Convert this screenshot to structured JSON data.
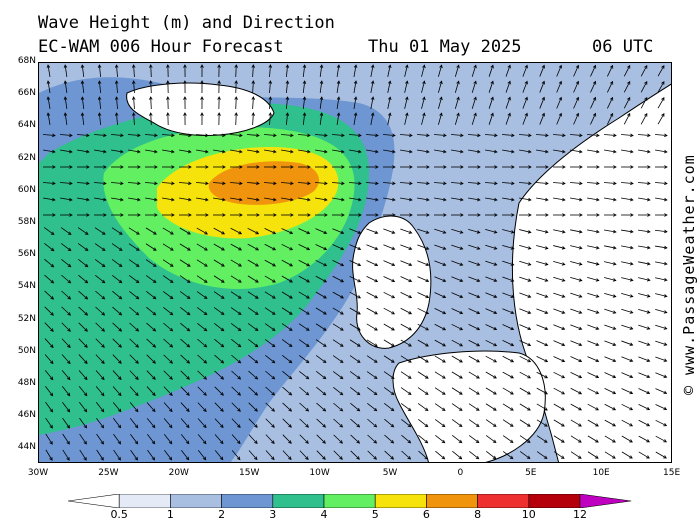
{
  "title": {
    "line1": "Wave Height (m) and Direction",
    "model": "EC-WAM 006 Hour Forecast",
    "date": "Thu 01 May 2025",
    "time": "06 UTC"
  },
  "credit": "© www.PassageWeather.com",
  "lat_labels": [
    "68N",
    "66N",
    "64N",
    "62N",
    "60N",
    "58N",
    "56N",
    "54N",
    "52N",
    "50N",
    "48N",
    "46N",
    "44N"
  ],
  "lon_labels": [
    "30W",
    "25W",
    "20W",
    "15W",
    "10W",
    "5W",
    "0",
    "5E",
    "10E",
    "15E"
  ],
  "legend": {
    "labels": [
      "0.5",
      "1",
      "2",
      "3",
      "4",
      "5",
      "6",
      "8",
      "10",
      "12"
    ],
    "colors": [
      "#ffffff",
      "#e4eaf6",
      "#a8bfe2",
      "#6d96d3",
      "#2fc08d",
      "#62f062",
      "#f5e30b",
      "#f0940d",
      "#ee3030",
      "#b5000c",
      "#c000c0"
    ]
  },
  "map_colors": {
    "sea_low": "#e4eaf6",
    "sea_1_2": "#a8bfe2",
    "sea_2_3": "#6d96d3",
    "sea_3_4": "#2fc08d",
    "sea_4_5": "#62f062",
    "sea_5_6": "#f5e30b",
    "sea_6_8": "#f0940d",
    "land": "#ffffff"
  }
}
